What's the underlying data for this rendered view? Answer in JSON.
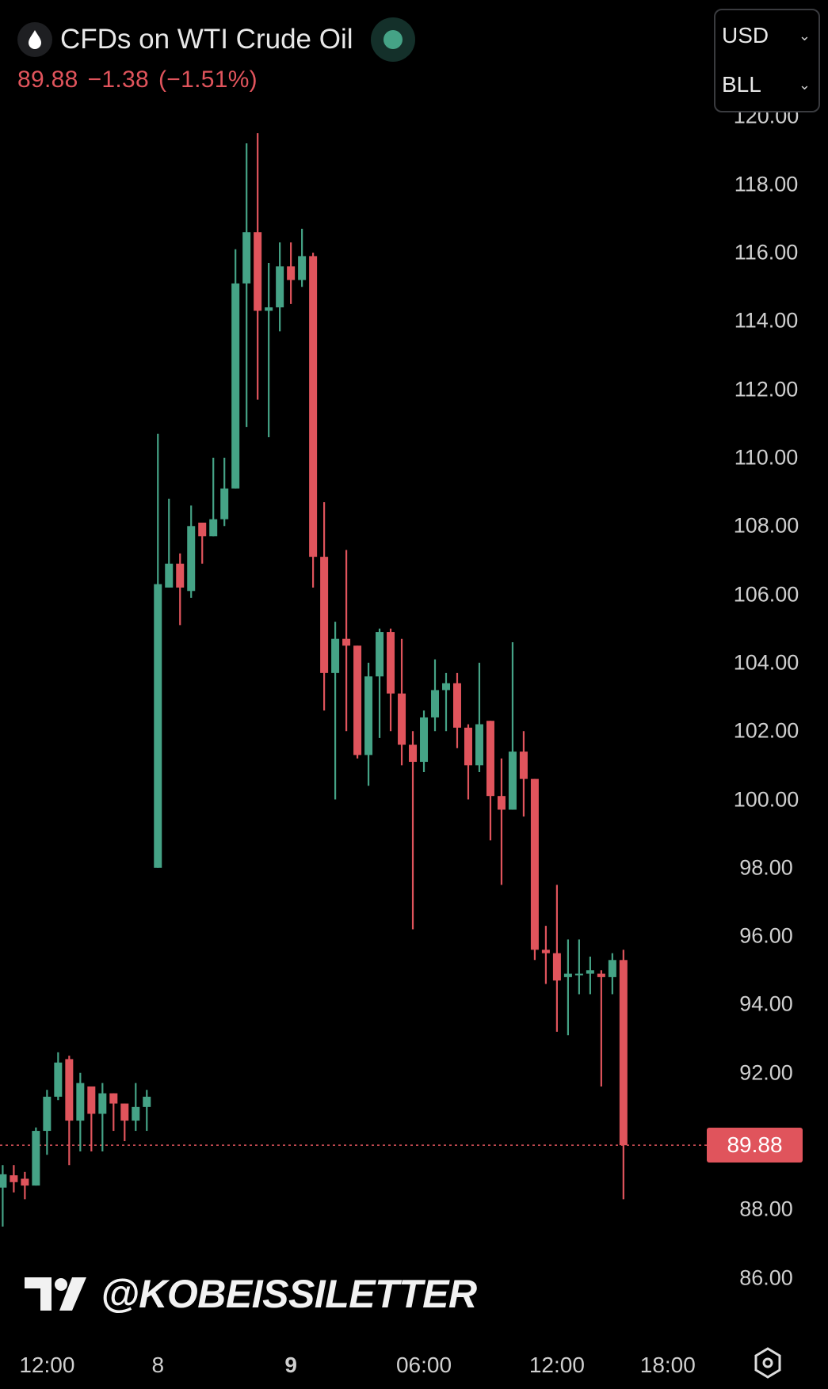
{
  "header": {
    "title": "CFDs on WTI Crude Oil",
    "icon": "oil-drop-icon",
    "status": "market-open-dot",
    "last_price": "89.88",
    "change": "−1.38",
    "change_pct": "(−1.51%)",
    "currency": "USD",
    "unit": "BLL"
  },
  "watermark": "@KOBEISSILETTER",
  "colors": {
    "up": "#45a386",
    "down": "#e0545c",
    "background": "#000000"
  },
  "chart_data": {
    "type": "candlestick",
    "title": "",
    "ylim": [
      85,
      120
    ],
    "y_ticks": [
      "120.00",
      "118.00",
      "116.00",
      "114.00",
      "112.00",
      "110.00",
      "108.00",
      "106.00",
      "104.00",
      "102.00",
      "100.00",
      "98.00",
      "96.00",
      "94.00",
      "92.00",
      "88.00",
      "86.00"
    ],
    "y_tick_values": [
      120,
      118,
      116,
      114,
      112,
      110,
      108,
      106,
      104,
      102,
      100,
      98,
      96,
      94,
      92,
      88,
      86
    ],
    "x_ticks": [
      {
        "label": "12:00",
        "bar": 4,
        "bold": false
      },
      {
        "label": "8",
        "bar": 14,
        "bold": false
      },
      {
        "label": "9",
        "bar": 26,
        "bold": true
      },
      {
        "label": "06:00",
        "bar": 38,
        "bold": false
      },
      {
        "label": "12:00",
        "bar": 50,
        "bold": false
      },
      {
        "label": "18:00",
        "bar": 60,
        "bold": false
      }
    ],
    "last_price": 89.88,
    "last_price_label": "89.88",
    "grid": false,
    "candles": [
      [
        88.64,
        89.3,
        87.5,
        89.03
      ],
      [
        89.0,
        89.3,
        88.5,
        88.8
      ],
      [
        88.9,
        89.1,
        88.3,
        88.7
      ],
      [
        88.7,
        90.4,
        88.7,
        90.3
      ],
      [
        90.3,
        91.5,
        89.6,
        91.3
      ],
      [
        91.3,
        92.6,
        91.2,
        92.3
      ],
      [
        92.4,
        92.5,
        89.3,
        90.6
      ],
      [
        90.6,
        92.0,
        89.7,
        91.7
      ],
      [
        91.6,
        91.6,
        89.7,
        90.8
      ],
      [
        90.8,
        91.7,
        89.7,
        91.4
      ],
      [
        91.4,
        91.4,
        90.3,
        91.1
      ],
      [
        91.1,
        91.1,
        90.0,
        90.6
      ],
      [
        90.6,
        91.7,
        90.3,
        91.0
      ],
      [
        91.0,
        91.5,
        90.3,
        91.3
      ],
      [
        98.0,
        110.7,
        98.0,
        106.3
      ],
      [
        106.2,
        108.8,
        106.2,
        106.9
      ],
      [
        106.9,
        107.2,
        105.1,
        106.2
      ],
      [
        106.1,
        108.6,
        105.9,
        108.0
      ],
      [
        108.1,
        108.1,
        106.9,
        107.7
      ],
      [
        107.7,
        110.0,
        107.7,
        108.2
      ],
      [
        108.2,
        110.0,
        108.0,
        109.1
      ],
      [
        109.1,
        116.1,
        109.1,
        115.1
      ],
      [
        115.1,
        119.2,
        110.9,
        116.6
      ],
      [
        116.6,
        119.5,
        111.7,
        114.3
      ],
      [
        114.3,
        115.7,
        110.6,
        114.4
      ],
      [
        114.4,
        116.3,
        113.7,
        115.6
      ],
      [
        115.6,
        116.3,
        114.5,
        115.2
      ],
      [
        115.2,
        116.7,
        115.0,
        115.9
      ],
      [
        115.9,
        116.0,
        106.2,
        107.1
      ],
      [
        107.1,
        108.7,
        102.6,
        103.7
      ],
      [
        103.7,
        105.2,
        100.0,
        104.7
      ],
      [
        104.7,
        107.3,
        102.0,
        104.5
      ],
      [
        104.5,
        104.5,
        101.2,
        101.3
      ],
      [
        101.3,
        104.0,
        100.4,
        103.6
      ],
      [
        103.6,
        105.0,
        101.8,
        104.9
      ],
      [
        104.9,
        105.0,
        102.0,
        103.1
      ],
      [
        103.1,
        104.7,
        101.0,
        101.6
      ],
      [
        101.6,
        102.0,
        96.2,
        101.1
      ],
      [
        101.1,
        102.6,
        100.8,
        102.4
      ],
      [
        102.4,
        104.1,
        102.0,
        103.2
      ],
      [
        103.2,
        103.7,
        102.0,
        103.4
      ],
      [
        103.4,
        103.7,
        101.5,
        102.1
      ],
      [
        102.1,
        102.2,
        100.0,
        101.0
      ],
      [
        101.0,
        104.0,
        100.8,
        102.2
      ],
      [
        102.3,
        102.3,
        98.8,
        100.1
      ],
      [
        100.1,
        101.2,
        97.5,
        99.7
      ],
      [
        99.7,
        104.6,
        99.7,
        101.4
      ],
      [
        101.4,
        102.0,
        99.5,
        100.6
      ],
      [
        100.6,
        100.6,
        95.3,
        95.6
      ],
      [
        95.6,
        96.3,
        94.6,
        95.5
      ],
      [
        95.5,
        97.5,
        93.2,
        94.7
      ],
      [
        94.8,
        95.9,
        93.1,
        94.9
      ],
      [
        94.9,
        95.9,
        94.3,
        94.9
      ],
      [
        94.9,
        95.4,
        94.3,
        95.0
      ],
      [
        94.9,
        95.0,
        91.6,
        94.8
      ],
      [
        94.8,
        95.5,
        94.3,
        95.3
      ],
      [
        95.3,
        95.6,
        88.3,
        89.88
      ]
    ]
  }
}
